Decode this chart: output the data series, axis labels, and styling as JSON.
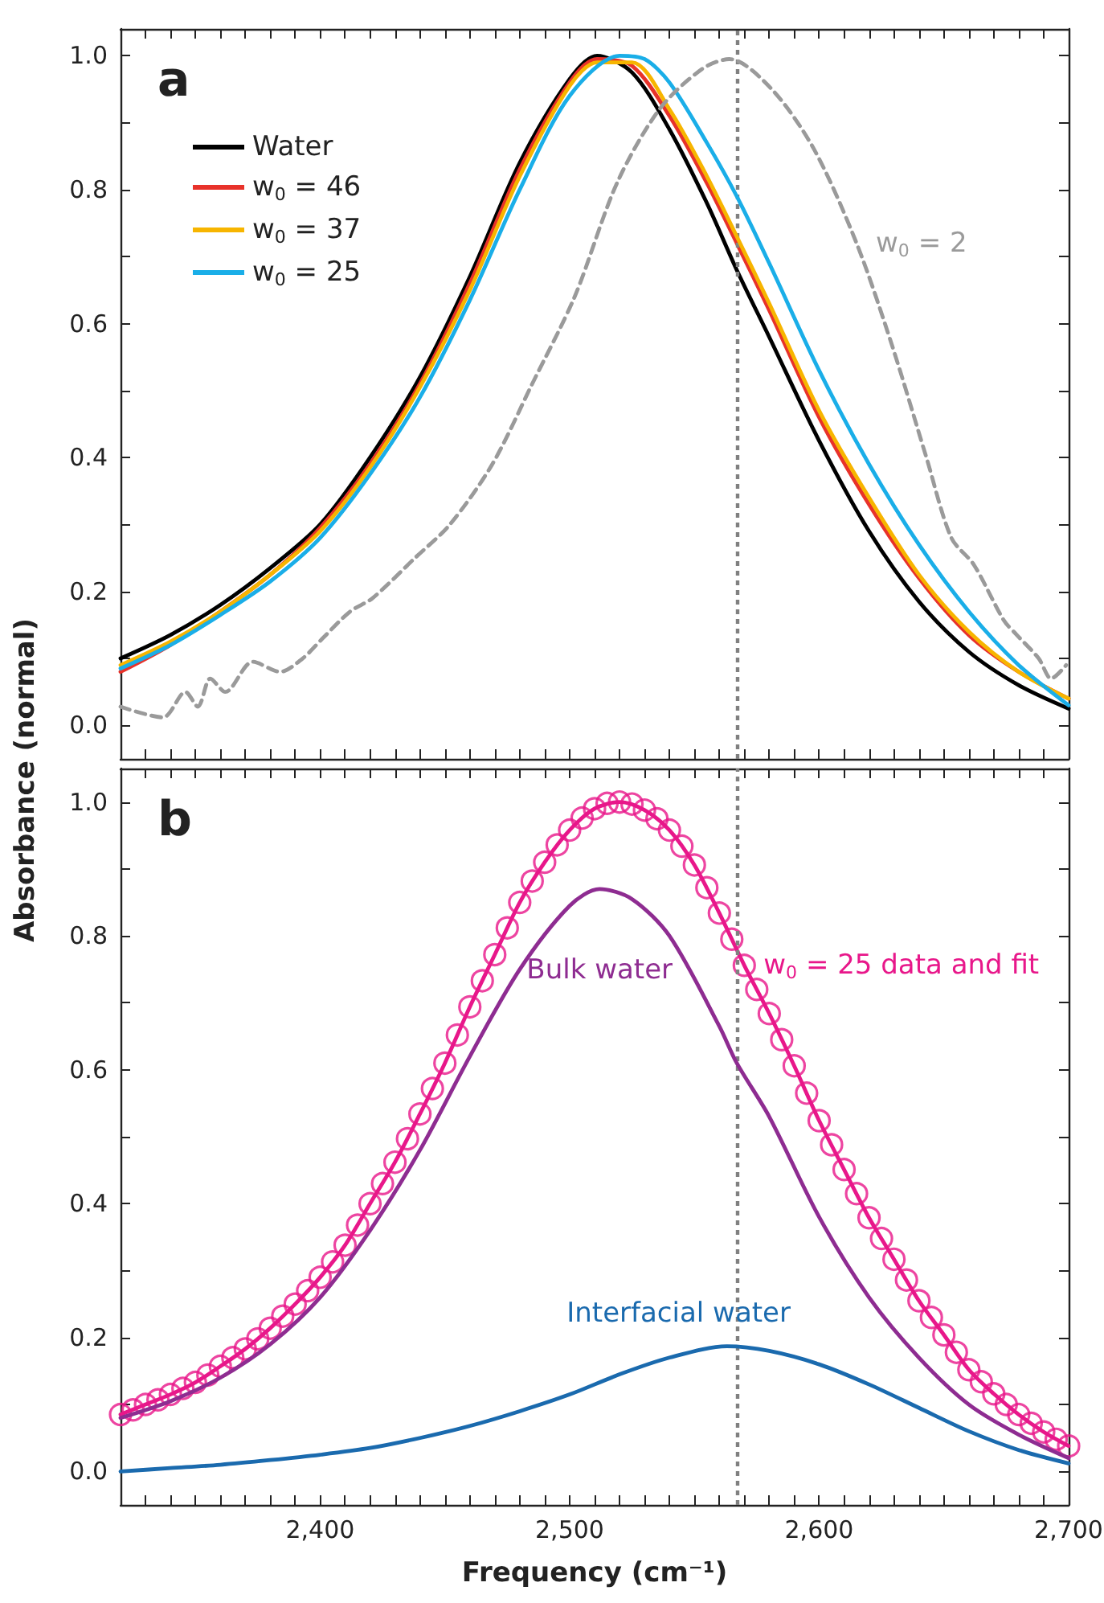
{
  "chart_data": [
    {
      "type": "line",
      "title": "a",
      "ylabel": "Absorbance (normal)",
      "legend": "top left",
      "marker": "none",
      "tick_labels": "y",
      "xlim": [
        2320,
        2700
      ],
      "ylim": [
        -0.05,
        1.04
      ],
      "xticks": [
        {
          "value": 2330,
          "label": null
        },
        {
          "value": 2340,
          "label": null
        },
        {
          "value": 2350,
          "label": null
        },
        {
          "value": 2360,
          "label": null
        },
        {
          "value": 2370,
          "label": null
        },
        {
          "value": 2380,
          "label": null
        },
        {
          "value": 2390,
          "label": null
        },
        {
          "value": 2400,
          "label": null
        },
        {
          "value": 2410,
          "label": null
        },
        {
          "value": 2420,
          "label": null
        },
        {
          "value": 2430,
          "label": null
        },
        {
          "value": 2440,
          "label": null
        },
        {
          "value": 2450,
          "label": null
        },
        {
          "value": 2460,
          "label": null
        },
        {
          "value": 2470,
          "label": null
        },
        {
          "value": 2480,
          "label": null
        },
        {
          "value": 2490,
          "label": null
        },
        {
          "value": 2500,
          "label": null
        },
        {
          "value": 2510,
          "label": null
        },
        {
          "value": 2520,
          "label": null
        },
        {
          "value": 2530,
          "label": null
        },
        {
          "value": 2540,
          "label": null
        },
        {
          "value": 2550,
          "label": null
        },
        {
          "value": 2560,
          "label": null
        },
        {
          "value": 2570,
          "label": null
        },
        {
          "value": 2580,
          "label": null
        },
        {
          "value": 2590,
          "label": null
        },
        {
          "value": 2600,
          "label": null
        },
        {
          "value": 2610,
          "label": null
        },
        {
          "value": 2620,
          "label": null
        },
        {
          "value": 2630,
          "label": null
        },
        {
          "value": 2640,
          "label": null
        },
        {
          "value": 2650,
          "label": null
        },
        {
          "value": 2660,
          "label": null
        },
        {
          "value": 2670,
          "label": null
        },
        {
          "value": 2680,
          "label": null
        },
        {
          "value": 2690,
          "label": null
        },
        {
          "value": 2700,
          "label": null
        }
      ],
      "yticks": [
        {
          "value": 0,
          "label": "0.0"
        },
        {
          "value": 0.1,
          "label": null
        },
        0.2,
        {
          "value": 0.3,
          "label": null
        },
        0.4,
        {
          "value": 0.5,
          "label": null
        },
        0.6,
        {
          "value": 0.7,
          "label": null
        },
        0.8,
        {
          "value": 0.9,
          "label": null
        },
        {
          "value": 1,
          "label": "1.0"
        }
      ],
      "ref_lines": [
        {
          "axis": "x",
          "value": 2567,
          "color": "#808080",
          "line_style": "dotted"
        }
      ],
      "series": [
        {
          "name": "Water",
          "color": "#000000",
          "x": [
            2320,
            2340,
            2360,
            2380,
            2400,
            2420,
            2440,
            2460,
            2480,
            2500,
            2511,
            2525,
            2540,
            2555,
            2567,
            2580,
            2600,
            2620,
            2640,
            2660,
            2680,
            2700
          ],
          "values": [
            0.1,
            0.135,
            0.18,
            0.235,
            0.3,
            0.4,
            0.52,
            0.67,
            0.84,
            0.965,
            1.0,
            0.975,
            0.89,
            0.78,
            0.68,
            0.58,
            0.425,
            0.29,
            0.185,
            0.11,
            0.06,
            0.025
          ]
        },
        {
          "name": "w$_{0}$ = 46",
          "color": "#e8322a",
          "x": [
            2320,
            2340,
            2360,
            2380,
            2400,
            2420,
            2440,
            2460,
            2480,
            2500,
            2511,
            2525,
            2540,
            2555,
            2567,
            2580,
            2600,
            2620,
            2640,
            2660,
            2680,
            2700
          ],
          "values": [
            0.08,
            0.12,
            0.17,
            0.225,
            0.295,
            0.39,
            0.51,
            0.66,
            0.83,
            0.96,
            0.995,
            0.985,
            0.91,
            0.81,
            0.72,
            0.62,
            0.46,
            0.33,
            0.22,
            0.135,
            0.08,
            0.04
          ]
        },
        {
          "name": "w$_{0}$ = 37",
          "color": "#f7b500",
          "x": [
            2320,
            2340,
            2360,
            2380,
            2400,
            2420,
            2440,
            2460,
            2480,
            2500,
            2511,
            2525,
            2540,
            2555,
            2567,
            2580,
            2600,
            2620,
            2640,
            2660,
            2680,
            2700
          ],
          "values": [
            0.09,
            0.125,
            0.17,
            0.225,
            0.29,
            0.385,
            0.505,
            0.65,
            0.82,
            0.955,
            0.99,
            0.99,
            0.92,
            0.82,
            0.73,
            0.63,
            0.47,
            0.34,
            0.225,
            0.14,
            0.08,
            0.04
          ]
        },
        {
          "name": "w$_{0}$ = 25",
          "color": "#1aaee8",
          "x": [
            2320,
            2340,
            2360,
            2380,
            2400,
            2420,
            2440,
            2460,
            2480,
            2500,
            2520,
            2530,
            2540,
            2555,
            2567,
            2580,
            2600,
            2620,
            2640,
            2660,
            2680,
            2700
          ],
          "values": [
            0.085,
            0.12,
            0.165,
            0.215,
            0.28,
            0.375,
            0.49,
            0.635,
            0.8,
            0.94,
            1.0,
            0.995,
            0.96,
            0.87,
            0.79,
            0.69,
            0.53,
            0.39,
            0.27,
            0.17,
            0.09,
            0.03
          ]
        },
        {
          "name": "w$_{0}$ = 2",
          "color": "#9a9a9a",
          "line_style": "dashed",
          "x": [
            2320,
            2337,
            2346,
            2351,
            2356,
            2362,
            2373,
            2384,
            2393,
            2401,
            2412,
            2421,
            2438,
            2452,
            2469,
            2485,
            2502,
            2519,
            2536,
            2553,
            2564,
            2581,
            2598,
            2615,
            2629,
            2643,
            2653,
            2662,
            2674,
            2679,
            2688,
            2693,
            2699
          ],
          "values": [
            0.028,
            0.012,
            0.05,
            0.028,
            0.07,
            0.05,
            0.095,
            0.08,
            0.1,
            0.13,
            0.17,
            0.19,
            0.25,
            0.3,
            0.39,
            0.51,
            0.64,
            0.81,
            0.92,
            0.98,
            0.995,
            0.95,
            0.86,
            0.72,
            0.57,
            0.4,
            0.28,
            0.24,
            0.157,
            0.136,
            0.1,
            0.07,
            0.09
          ]
        }
      ]
    },
    {
      "type": "line",
      "title": "b",
      "xlabel": "Frequency (cm⁻¹)",
      "marker": "none",
      "xlim": [
        2320,
        2700
      ],
      "ylim": [
        -0.05,
        1.05
      ],
      "xticks": [
        {
          "value": 2330,
          "label": null
        },
        {
          "value": 2340,
          "label": null
        },
        {
          "value": 2350,
          "label": null
        },
        {
          "value": 2360,
          "label": null
        },
        {
          "value": 2370,
          "label": null
        },
        {
          "value": 2380,
          "label": null
        },
        {
          "value": 2390,
          "label": null
        },
        {
          "value": 2400,
          "label": "2,400"
        },
        {
          "value": 2410,
          "label": null
        },
        {
          "value": 2420,
          "label": null
        },
        {
          "value": 2430,
          "label": null
        },
        {
          "value": 2440,
          "label": null
        },
        {
          "value": 2450,
          "label": null
        },
        {
          "value": 2460,
          "label": null
        },
        {
          "value": 2470,
          "label": null
        },
        {
          "value": 2480,
          "label": null
        },
        {
          "value": 2490,
          "label": null
        },
        {
          "value": 2500,
          "label": "2,500"
        },
        {
          "value": 2510,
          "label": null
        },
        {
          "value": 2520,
          "label": null
        },
        {
          "value": 2530,
          "label": null
        },
        {
          "value": 2540,
          "label": null
        },
        {
          "value": 2550,
          "label": null
        },
        {
          "value": 2560,
          "label": null
        },
        {
          "value": 2570,
          "label": null
        },
        {
          "value": 2580,
          "label": null
        },
        {
          "value": 2590,
          "label": null
        },
        {
          "value": 2600,
          "label": "2,600"
        },
        {
          "value": 2610,
          "label": null
        },
        {
          "value": 2620,
          "label": null
        },
        {
          "value": 2630,
          "label": null
        },
        {
          "value": 2640,
          "label": null
        },
        {
          "value": 2650,
          "label": null
        },
        {
          "value": 2660,
          "label": null
        },
        {
          "value": 2670,
          "label": null
        },
        {
          "value": 2680,
          "label": null
        },
        {
          "value": 2690,
          "label": null
        },
        {
          "value": 2700,
          "label": "2,700"
        }
      ],
      "yticks": [
        {
          "value": 0,
          "label": "0.0"
        },
        {
          "value": 0.1,
          "label": null
        },
        0.2,
        {
          "value": 0.3,
          "label": null
        },
        0.4,
        {
          "value": 0.5,
          "label": null
        },
        0.6,
        {
          "value": 0.7,
          "label": null
        },
        0.8,
        {
          "value": 0.9,
          "label": null
        },
        {
          "value": 1,
          "label": "1.0"
        }
      ],
      "ref_lines": [
        {
          "axis": "x",
          "value": 2567,
          "color": "#808080",
          "line_style": "dotted"
        }
      ],
      "series": [
        {
          "type": "scatter",
          "marker": "circle",
          "color": "#e8178a",
          "x": [
            2320,
            2325,
            2330,
            2335,
            2340,
            2345,
            2350,
            2355,
            2360,
            2365,
            2370,
            2375,
            2380,
            2385,
            2390,
            2395,
            2400,
            2405,
            2410,
            2415,
            2420,
            2425,
            2430,
            2435,
            2440,
            2445,
            2450,
            2455,
            2460,
            2465,
            2470,
            2475,
            2480,
            2485,
            2490,
            2495,
            2500,
            2505,
            2510,
            2515,
            2520,
            2525,
            2530,
            2535,
            2540,
            2545,
            2550,
            2555,
            2560,
            2565,
            2570,
            2575,
            2580,
            2585,
            2590,
            2595,
            2600,
            2605,
            2610,
            2615,
            2620,
            2625,
            2630,
            2635,
            2640,
            2645,
            2650,
            2655,
            2660,
            2665,
            2670,
            2675,
            2680,
            2685,
            2690,
            2695,
            2700
          ],
          "values": [
            0.085,
            0.092,
            0.1,
            0.107,
            0.115,
            0.124,
            0.133,
            0.144,
            0.157,
            0.17,
            0.183,
            0.198,
            0.214,
            0.232,
            0.25,
            0.27,
            0.29,
            0.313,
            0.338,
            0.368,
            0.4,
            0.43,
            0.462,
            0.497,
            0.534,
            0.572,
            0.61,
            0.652,
            0.694,
            0.733,
            0.772,
            0.812,
            0.85,
            0.882,
            0.91,
            0.936,
            0.958,
            0.976,
            0.99,
            0.998,
            1.0,
            0.997,
            0.988,
            0.975,
            0.958,
            0.934,
            0.906,
            0.872,
            0.834,
            0.795,
            0.756,
            0.72,
            0.684,
            0.645,
            0.606,
            0.565,
            0.524,
            0.488,
            0.451,
            0.415,
            0.379,
            0.348,
            0.317,
            0.286,
            0.255,
            0.23,
            0.204,
            0.178,
            0.152,
            0.134,
            0.116,
            0.1,
            0.085,
            0.072,
            0.059,
            0.048,
            0.038
          ]
        },
        {
          "name": "w$_{0}$ = 25 data and fit",
          "color": "#e8178a",
          "x": [
            2320,
            2330,
            2340,
            2350,
            2360,
            2370,
            2380,
            2390,
            2400,
            2410,
            2420,
            2430,
            2440,
            2450,
            2460,
            2470,
            2480,
            2490,
            2500,
            2510,
            2520,
            2530,
            2540,
            2550,
            2560,
            2570,
            2580,
            2590,
            2600,
            2610,
            2620,
            2630,
            2640,
            2650,
            2660,
            2670,
            2680,
            2690,
            2700
          ],
          "values": [
            0.085,
            0.1,
            0.115,
            0.133,
            0.157,
            0.183,
            0.214,
            0.25,
            0.29,
            0.338,
            0.4,
            0.462,
            0.534,
            0.61,
            0.694,
            0.772,
            0.85,
            0.91,
            0.958,
            0.99,
            1.0,
            0.988,
            0.958,
            0.906,
            0.834,
            0.756,
            0.684,
            0.606,
            0.524,
            0.451,
            0.379,
            0.317,
            0.255,
            0.204,
            0.152,
            0.116,
            0.085,
            0.059,
            0.038
          ]
        },
        {
          "name": "Bulk water",
          "color": "#8e2c91",
          "x": [
            2320,
            2340,
            2360,
            2380,
            2400,
            2420,
            2440,
            2460,
            2480,
            2500,
            2512,
            2525,
            2540,
            2560,
            2567,
            2580,
            2600,
            2620,
            2640,
            2660,
            2680,
            2700
          ],
          "values": [
            0.08,
            0.105,
            0.14,
            0.19,
            0.26,
            0.36,
            0.48,
            0.62,
            0.75,
            0.845,
            0.87,
            0.855,
            0.8,
            0.665,
            0.61,
            0.53,
            0.38,
            0.26,
            0.17,
            0.1,
            0.055,
            0.02
          ]
        },
        {
          "name": "Interfacial water",
          "color": "#1a6aae",
          "x": [
            2320,
            2340,
            2360,
            2380,
            2400,
            2420,
            2440,
            2460,
            2480,
            2500,
            2520,
            2540,
            2563,
            2580,
            2600,
            2620,
            2640,
            2660,
            2680,
            2700
          ],
          "values": [
            0.0,
            0.005,
            0.01,
            0.017,
            0.025,
            0.035,
            0.05,
            0.068,
            0.09,
            0.115,
            0.145,
            0.17,
            0.187,
            0.18,
            0.16,
            0.13,
            0.095,
            0.06,
            0.032,
            0.012
          ]
        }
      ]
    }
  ]
}
